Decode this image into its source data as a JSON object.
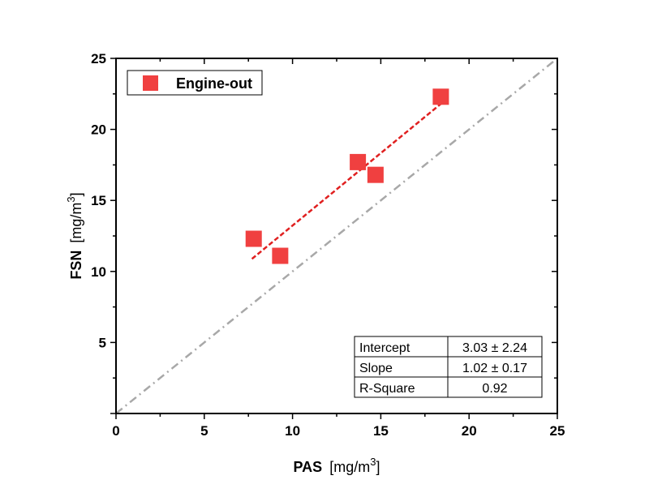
{
  "chart_data": {
    "type": "scatter",
    "x_title": "PAS",
    "x_unit_prefix": "[mg/m",
    "x_unit_sup": "3",
    "x_unit_suffix": "]",
    "y_title": "FSN",
    "y_unit_prefix": "[mg/m",
    "y_unit_sup": "3",
    "y_unit_suffix": "]",
    "xlim": [
      0,
      25
    ],
    "ylim": [
      0,
      25
    ],
    "x_ticks": [
      0,
      5,
      10,
      15,
      20,
      25
    ],
    "x_tick_labels": [
      "0",
      "5",
      "10",
      "15",
      "20",
      "25"
    ],
    "y_ticks": [
      5,
      10,
      15,
      20,
      25
    ],
    "y_tick_labels": [
      "5",
      "10",
      "15",
      "20",
      "25"
    ],
    "grid": false,
    "legend_position": "top-left",
    "series": [
      {
        "name": "Engine-out",
        "marker": "square",
        "color": "#f04040",
        "points": [
          {
            "x": 7.8,
            "y": 12.3
          },
          {
            "x": 9.3,
            "y": 11.1
          },
          {
            "x": 13.7,
            "y": 17.7
          },
          {
            "x": 14.7,
            "y": 16.8
          },
          {
            "x": 18.4,
            "y": 22.3
          }
        ]
      }
    ],
    "fit_line": {
      "color": "#e02020",
      "style": "dashed",
      "x_range": [
        7.7,
        18.4
      ],
      "intercept": 3.03,
      "slope": 1.02
    },
    "reference_line": {
      "label": "1:1",
      "color": "#a8a8a8",
      "style": "dash-dot",
      "x_range": [
        0,
        25
      ]
    },
    "stats_table": {
      "position": "bottom-right",
      "rows": [
        {
          "label": "Intercept",
          "value": "3.03 ± 2.24"
        },
        {
          "label": "Slope",
          "value": "1.02 ± 0.17"
        },
        {
          "label": "R-Square",
          "value": "0.92"
        }
      ]
    }
  }
}
